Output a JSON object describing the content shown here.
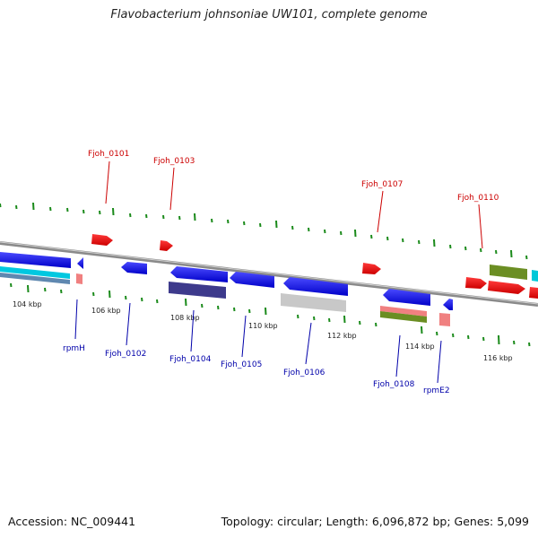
{
  "title": "Flavobacterium johnsoniae UW101, complete genome",
  "footer": {
    "accession": "Accession: NC_009441",
    "summary": "Topology: circular; Length: 6,096,872 bp; Genes: 5,099"
  },
  "scale_labels": [
    "104 kbp",
    "106 kbp",
    "108 kbp",
    "110 kbp",
    "112 kbp",
    "114 kbp",
    "116 kbp"
  ],
  "top_labels": [
    "Fjoh_0101",
    "Fjoh_0103",
    "Fjoh_0107",
    "Fjoh_0110"
  ],
  "bottom_labels": [
    "rpmH",
    "Fjoh_0102",
    "Fjoh_0104",
    "Fjoh_0105",
    "Fjoh_0106",
    "Fjoh_0108",
    "rpmE2"
  ],
  "colors": {
    "forward_gene": "#ff0000",
    "reverse_gene": "#0000ff",
    "backbone": "#808080",
    "ticks": "#008000",
    "top_label": "#cc0000",
    "bottom_label": "#0000aa"
  }
}
